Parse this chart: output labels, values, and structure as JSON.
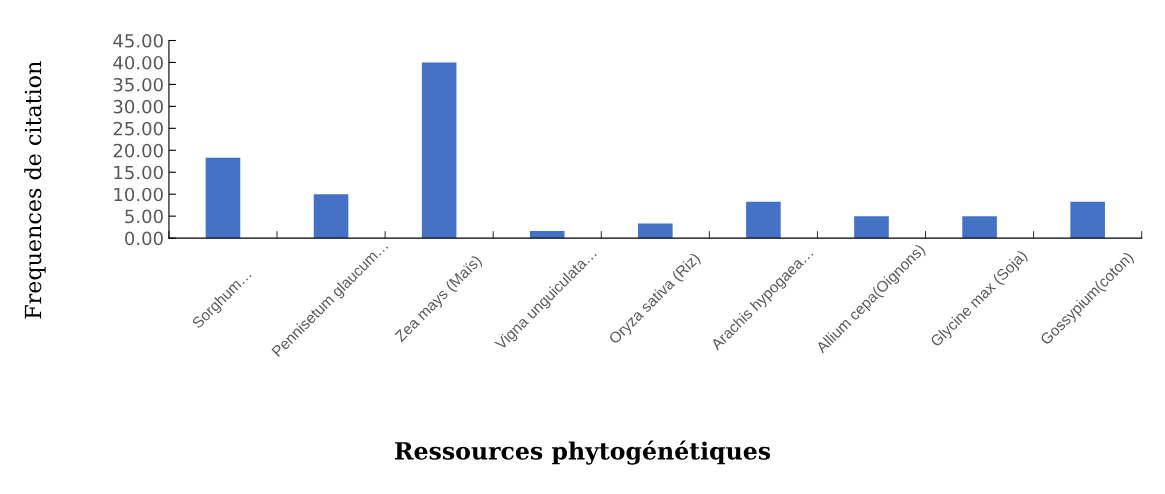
{
  "chart_data": {
    "type": "bar",
    "xlabel": "Ressources phytogénétiques",
    "ylabel": "Frequences de citation",
    "categories": [
      "Sorghum…",
      "Pennisetum glaucum…",
      "Zea mays (Maïs)",
      "Vigna unguiculata…",
      "Oryza sativa (Riz)",
      "Arachis hypogaea…",
      "Allium cepa(Oignons)",
      "Glycine max (Soja)",
      "Gossypium(coton)"
    ],
    "values": [
      18.3,
      10,
      40,
      1.6,
      3.3,
      8.3,
      5,
      5,
      8.3
    ],
    "color": "#4472c4",
    "ylim": [
      0,
      45
    ],
    "yticks": [
      {
        "value": 0,
        "label": "0.00"
      },
      {
        "value": 5,
        "label": "5.00"
      },
      {
        "value": 10,
        "label": "10.00"
      },
      {
        "value": 15,
        "label": "15.00"
      },
      {
        "value": 20,
        "label": "20.00"
      },
      {
        "value": 25,
        "label": "25.00"
      },
      {
        "value": 30,
        "label": "30.00"
      },
      {
        "value": 35,
        "label": "35.00"
      },
      {
        "value": 40,
        "label": "40.00"
      },
      {
        "value": 45,
        "label": "45.00"
      }
    ],
    "grid": false,
    "legend": false
  }
}
